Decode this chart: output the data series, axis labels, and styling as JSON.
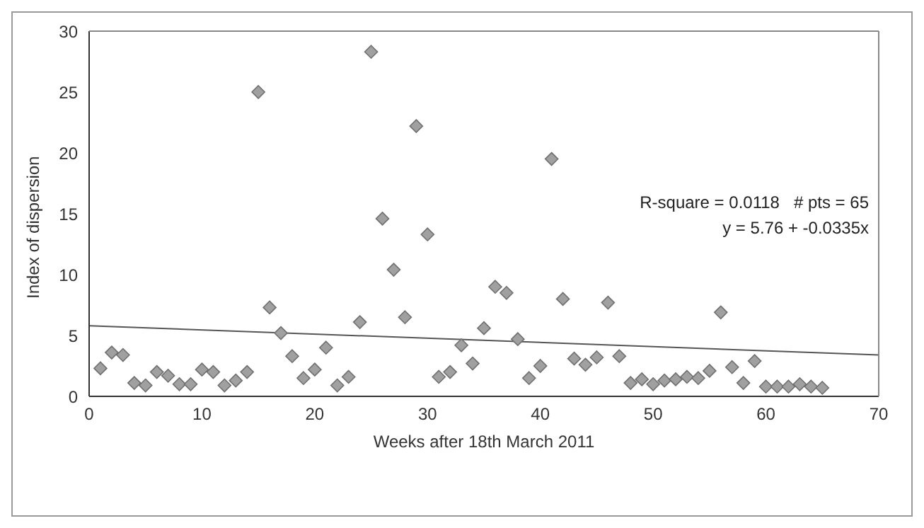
{
  "chart_data": {
    "type": "scatter",
    "xlabel": "Weeks after 18th March 2011",
    "ylabel": "Index of dispersion",
    "xlim": [
      0,
      70
    ],
    "xticks": [
      0,
      10,
      20,
      30,
      40,
      50,
      60,
      70
    ],
    "ylim": [
      0,
      30
    ],
    "yticks": [
      0,
      5,
      10,
      15,
      20,
      25,
      30
    ],
    "grid": false,
    "legend": false,
    "marker": "diamond",
    "annotations": [
      "R-square = 0.0118   # pts = 65",
      "y = 5.76 + -0.0335x"
    ],
    "series": [
      {
        "color": "#a0a0a0",
        "x": [
          1,
          2,
          3,
          4,
          5,
          6,
          7,
          8,
          9,
          10,
          11,
          12,
          13,
          14,
          15,
          16,
          17,
          18,
          19,
          20,
          21,
          22,
          23,
          24,
          25,
          26,
          27,
          28,
          29,
          30,
          31,
          32,
          33,
          34,
          35,
          36,
          37,
          38,
          39,
          40,
          41,
          42,
          43,
          44,
          45,
          46,
          47,
          48,
          49,
          50,
          51,
          52,
          53,
          54,
          55,
          56,
          57,
          58,
          59,
          60,
          61,
          62,
          63,
          64,
          65
        ],
        "values": [
          2.3,
          3.6,
          3.4,
          1.1,
          0.9,
          2.0,
          1.7,
          1.0,
          1.0,
          2.2,
          2.0,
          0.9,
          1.3,
          2.0,
          25,
          7.3,
          5.2,
          3.3,
          1.5,
          2.2,
          4.0,
          0.9,
          1.6,
          6.1,
          28.3,
          14.6,
          10.4,
          6.5,
          22.2,
          13.3,
          1.6,
          2.0,
          4.2,
          2.7,
          5.6,
          9.0,
          8.5,
          4.7,
          1.5,
          2.5,
          19.5,
          8.0,
          3.1,
          2.6,
          3.2,
          7.7,
          3.3,
          1.1,
          1.4,
          1.0,
          1.3,
          1.4,
          1.6,
          1.5,
          2.1,
          6.9,
          2.4,
          1.1,
          2.9,
          0.8,
          0.8,
          0.8,
          1.0,
          0.8,
          0.7
        ]
      },
      {
        "type": "line",
        "color": "#555555",
        "marker": "none",
        "x": [
          0,
          70
        ],
        "values": [
          5.8,
          3.4
        ]
      }
    ]
  }
}
